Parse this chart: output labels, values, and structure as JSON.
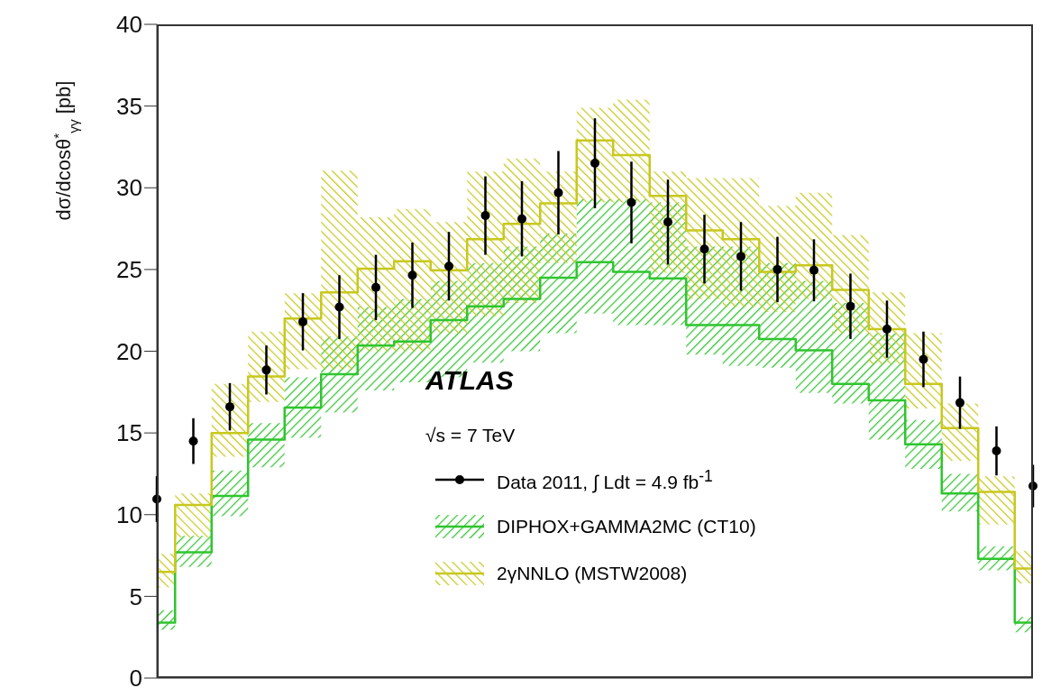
{
  "chart_data": {
    "type": "scatter",
    "categories": [
      null,
      null,
      null,
      null,
      null,
      null,
      null,
      null,
      null,
      null,
      null,
      null,
      null,
      null,
      null,
      null,
      null,
      null,
      null,
      null,
      null,
      null,
      null,
      null,
      null
    ],
    "ylabel": "dσ/dcosθ$^{*}$$_{γγ}$ [pb]",
    "ylim": [
      0,
      40
    ],
    "yticks": [
      0,
      5,
      10,
      15,
      20,
      25,
      30,
      35,
      40
    ],
    "tick_labels": "y",
    "grid": false,
    "legend": "bottom",
    "annotations": [
      "ATLAS",
      "√s = 7 TeV"
    ],
    "series": [
      {
        "name": "Data 2011, ∫ Ldt = 4.9 fb$^{-1}$",
        "type": "scatter",
        "marker": "circle",
        "color": "#000000",
        "values": [
          10.95,
          14.5,
          16.6,
          18.85,
          21.8,
          22.7,
          23.9,
          24.65,
          25.2,
          28.3,
          28.1,
          29.7,
          31.5,
          29.1,
          27.9,
          26.25,
          25.8,
          25.0,
          24.95,
          22.75,
          21.35,
          19.5,
          16.85,
          13.9,
          11.75
        ],
        "errors": [
          1.4,
          1.4,
          1.45,
          1.5,
          1.75,
          1.95,
          2.0,
          2.0,
          2.1,
          2.4,
          2.3,
          2.55,
          2.75,
          2.5,
          2.6,
          2.1,
          2.1,
          2.0,
          1.9,
          2.0,
          1.75,
          1.7,
          1.6,
          1.5,
          1.3
        ]
      },
      {
        "name": "DIPHOX+GAMMA2MC (CT10)",
        "type": "step",
        "color": "#2fc52f",
        "values": [
          3.4,
          7.7,
          11.15,
          14.6,
          16.55,
          18.6,
          20.35,
          20.6,
          21.9,
          22.75,
          23.2,
          24.5,
          25.45,
          24.85,
          24.45,
          21.6,
          21.6,
          20.75,
          20.05,
          18.0,
          17.0,
          14.3,
          11.3,
          7.3,
          3.4
        ],
        "lower": [
          2.95,
          6.8,
          9.9,
          12.9,
          14.7,
          16.25,
          17.6,
          18.1,
          18.4,
          19.3,
          20.0,
          21.1,
          22.3,
          21.6,
          21.6,
          19.8,
          19.1,
          19.0,
          17.45,
          16.8,
          14.6,
          12.8,
          10.2,
          6.6,
          2.8
        ],
        "upper": [
          4.15,
          8.7,
          12.7,
          15.6,
          18.4,
          20.9,
          22.7,
          23.2,
          24.3,
          25.4,
          26.4,
          27.2,
          29.3,
          29.3,
          29.1,
          26.4,
          26.4,
          25.4,
          24.3,
          22.95,
          21.1,
          15.8,
          12.5,
          8.05,
          3.75
        ]
      },
      {
        "name": "2γNNLO (MSTW2008)",
        "type": "step",
        "color": "#c8c81e",
        "values": [
          6.5,
          10.6,
          15.0,
          18.45,
          22.0,
          23.6,
          25.05,
          25.5,
          24.95,
          26.85,
          27.8,
          29.05,
          32.9,
          32.0,
          29.5,
          27.4,
          26.85,
          24.85,
          25.25,
          23.75,
          21.35,
          18.0,
          15.3,
          11.4,
          6.7
        ],
        "lower": [
          5.55,
          8.6,
          13.55,
          16.9,
          18.9,
          18.9,
          20.0,
          20.0,
          21.1,
          22.15,
          22.95,
          25.4,
          29.1,
          29.1,
          24.8,
          23.2,
          22.7,
          22.4,
          23.2,
          21.1,
          19.2,
          16.5,
          13.3,
          9.4,
          5.8
        ],
        "upper": [
          7.6,
          11.3,
          18.0,
          21.2,
          23.55,
          31.05,
          28.2,
          28.7,
          27.9,
          31.0,
          31.8,
          31.0,
          34.9,
          35.4,
          31.0,
          30.6,
          30.6,
          28.9,
          29.7,
          27.1,
          23.6,
          21.1,
          16.8,
          12.35,
          7.8
        ]
      }
    ]
  }
}
